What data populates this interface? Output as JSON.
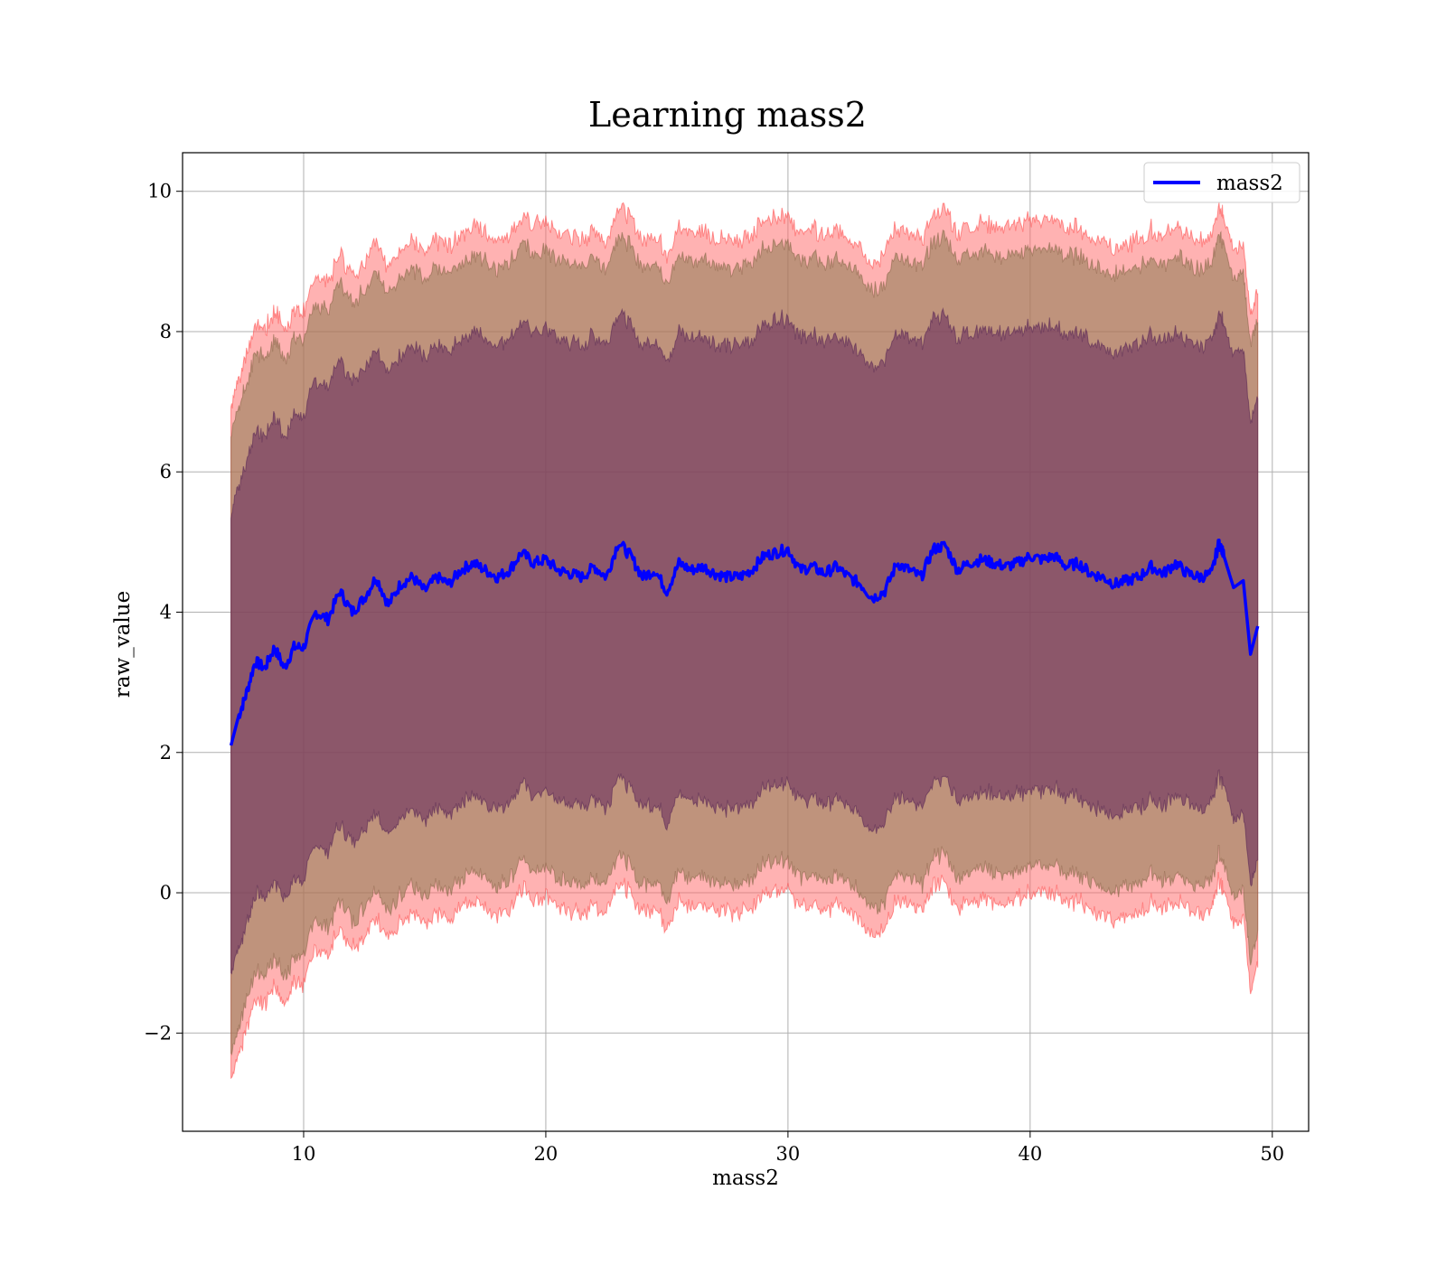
{
  "chart_data": {
    "type": "line",
    "title": "Learning mass2",
    "xlabel": "mass2",
    "ylabel": "raw_value",
    "xlim": [
      5,
      51.5
    ],
    "ylim": [
      -3.4,
      10.55
    ],
    "xticks": [
      10,
      20,
      30,
      40,
      50
    ],
    "yticks": [
      -2,
      0,
      2,
      4,
      6,
      8,
      10
    ],
    "ytick_labels": [
      "−2",
      "0",
      "2",
      "4",
      "6",
      "8",
      "10"
    ],
    "grid": true,
    "legend": {
      "placement": "top-right",
      "entries": [
        "mass2"
      ]
    },
    "colors": {
      "line": "#0000ff",
      "band_outer": "#ff6666",
      "band_mid": "#8b7a50",
      "band_inner": "#6b2f5f"
    },
    "series": [
      {
        "name": "mass2",
        "x": [
          7.0,
          7.3,
          7.6,
          8.0,
          8.4,
          8.8,
          9.2,
          9.6,
          10.0,
          10.5,
          11.0,
          11.5,
          12.0,
          12.5,
          13.0,
          13.5,
          14.0,
          14.5,
          15.0,
          15.5,
          16.0,
          16.5,
          17.0,
          17.5,
          18.0,
          18.5,
          19.0,
          19.5,
          20.0,
          20.5,
          21.0,
          21.5,
          22.0,
          22.5,
          23.0,
          23.5,
          24.0,
          24.5,
          25.0,
          25.5,
          26.0,
          26.5,
          27.0,
          27.5,
          28.0,
          28.5,
          29.0,
          29.5,
          30.0,
          30.5,
          31.0,
          31.5,
          32.0,
          32.5,
          33.0,
          33.5,
          34.0,
          34.5,
          35.0,
          35.5,
          36.0,
          36.5,
          37.0,
          37.5,
          38.0,
          38.5,
          39.0,
          39.5,
          40.0,
          40.5,
          41.0,
          41.5,
          42.0,
          42.5,
          43.0,
          43.5,
          44.0,
          44.5,
          45.0,
          45.5,
          46.0,
          46.5,
          47.0,
          47.5,
          47.8,
          48.0,
          48.4,
          48.8,
          49.1,
          49.4
        ],
        "y": [
          2.1,
          2.5,
          2.8,
          3.3,
          3.2,
          3.5,
          3.2,
          3.5,
          3.5,
          4.0,
          3.9,
          4.3,
          4.0,
          4.2,
          4.5,
          4.1,
          4.4,
          4.5,
          4.3,
          4.5,
          4.4,
          4.6,
          4.7,
          4.6,
          4.5,
          4.6,
          4.85,
          4.7,
          4.75,
          4.6,
          4.55,
          4.5,
          4.65,
          4.5,
          5.0,
          4.8,
          4.5,
          4.6,
          4.3,
          4.7,
          4.6,
          4.65,
          4.55,
          4.5,
          4.5,
          4.6,
          4.8,
          4.85,
          4.9,
          4.6,
          4.65,
          4.55,
          4.65,
          4.5,
          4.4,
          4.2,
          4.3,
          4.7,
          4.6,
          4.5,
          4.9,
          4.95,
          4.6,
          4.7,
          4.75,
          4.7,
          4.65,
          4.7,
          4.8,
          4.75,
          4.8,
          4.65,
          4.7,
          4.55,
          4.5,
          4.4,
          4.45,
          4.5,
          4.65,
          4.55,
          4.7,
          4.55,
          4.5,
          4.55,
          5.0,
          4.8,
          4.35,
          4.45,
          3.4,
          3.8
        ]
      }
    ]
  },
  "layout_hints": {
    "band_outer_half_width": 4.8,
    "band_mid_half_width": 4.4,
    "band_inner_half_width": 3.3
  }
}
